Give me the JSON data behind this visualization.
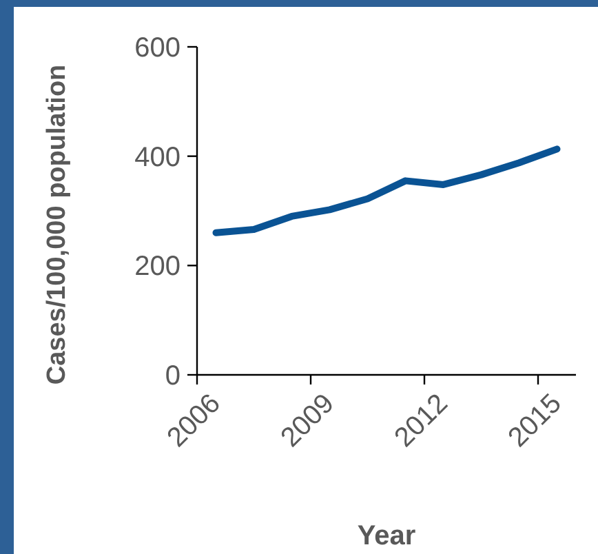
{
  "chart_data": {
    "type": "line",
    "xlabel": "Year",
    "ylabel": "Cases/100,000 population",
    "categories": [
      "2006",
      null,
      null,
      "2009",
      null,
      null,
      "2012",
      null,
      null,
      "2015"
    ],
    "series": [
      {
        "color": "#0a5394",
        "values": [
          260,
          266,
          290,
          302,
          322,
          355,
          348,
          366,
          388,
          413
        ]
      }
    ],
    "ylim": [
      0,
      600
    ],
    "yticks": [
      0,
      200,
      400,
      600
    ],
    "grid": false,
    "marker": "none",
    "line_style": "solid"
  }
}
